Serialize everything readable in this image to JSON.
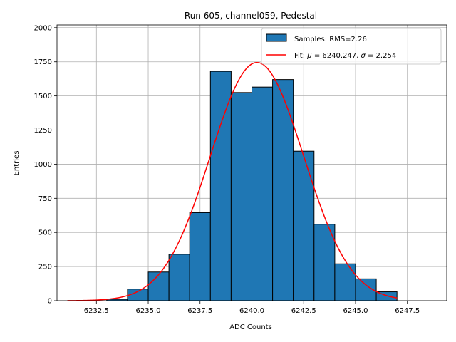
{
  "chart_data": {
    "type": "bar",
    "title": "Run 605, channel059, Pedestal",
    "xlabel": "ADC Counts",
    "ylabel": "Entries",
    "xlim": [
      6230.6,
      6249.4
    ],
    "ylim": [
      0,
      2020
    ],
    "xticks": [
      6232.5,
      6235.0,
      6237.5,
      6240.0,
      6242.5,
      6245.0,
      6247.5
    ],
    "xtick_labels": [
      "6232.5",
      "6235.0",
      "6237.5",
      "6240.0",
      "6242.5",
      "6245.0",
      "6247.5"
    ],
    "yticks": [
      0,
      250,
      500,
      750,
      1000,
      1250,
      1500,
      1750,
      2000
    ],
    "ytick_labels": [
      "0",
      "250",
      "500",
      "750",
      "1000",
      "1250",
      "1500",
      "1750",
      "2000"
    ],
    "grid": true,
    "legend_position": "top-right",
    "series": [
      {
        "name": "Samples: RMS=2.26",
        "kind": "histogram",
        "color": "#1f77b4",
        "edgecolor": "#000000",
        "bin_edges": [
          6233,
          6234,
          6235,
          6236,
          6237,
          6238,
          6239,
          6240,
          6241,
          6242,
          6243,
          6244,
          6245,
          6246,
          6247
        ],
        "values": [
          10,
          85,
          210,
          340,
          645,
          1680,
          1525,
          1565,
          1620,
          1095,
          560,
          270,
          160,
          65
        ]
      },
      {
        "name_prefix": "Fit: ",
        "name_math_1": "μ",
        "name_mid": " = 6240.247, ",
        "name_math_2": "σ",
        "name_suffix": " = 2.254",
        "kind": "gaussian_fit",
        "color": "#ff0000",
        "mu": 6240.247,
        "sigma": 2.254,
        "amplitude": 1745,
        "x_range": [
          6231.1,
          6247.0
        ]
      }
    ]
  }
}
